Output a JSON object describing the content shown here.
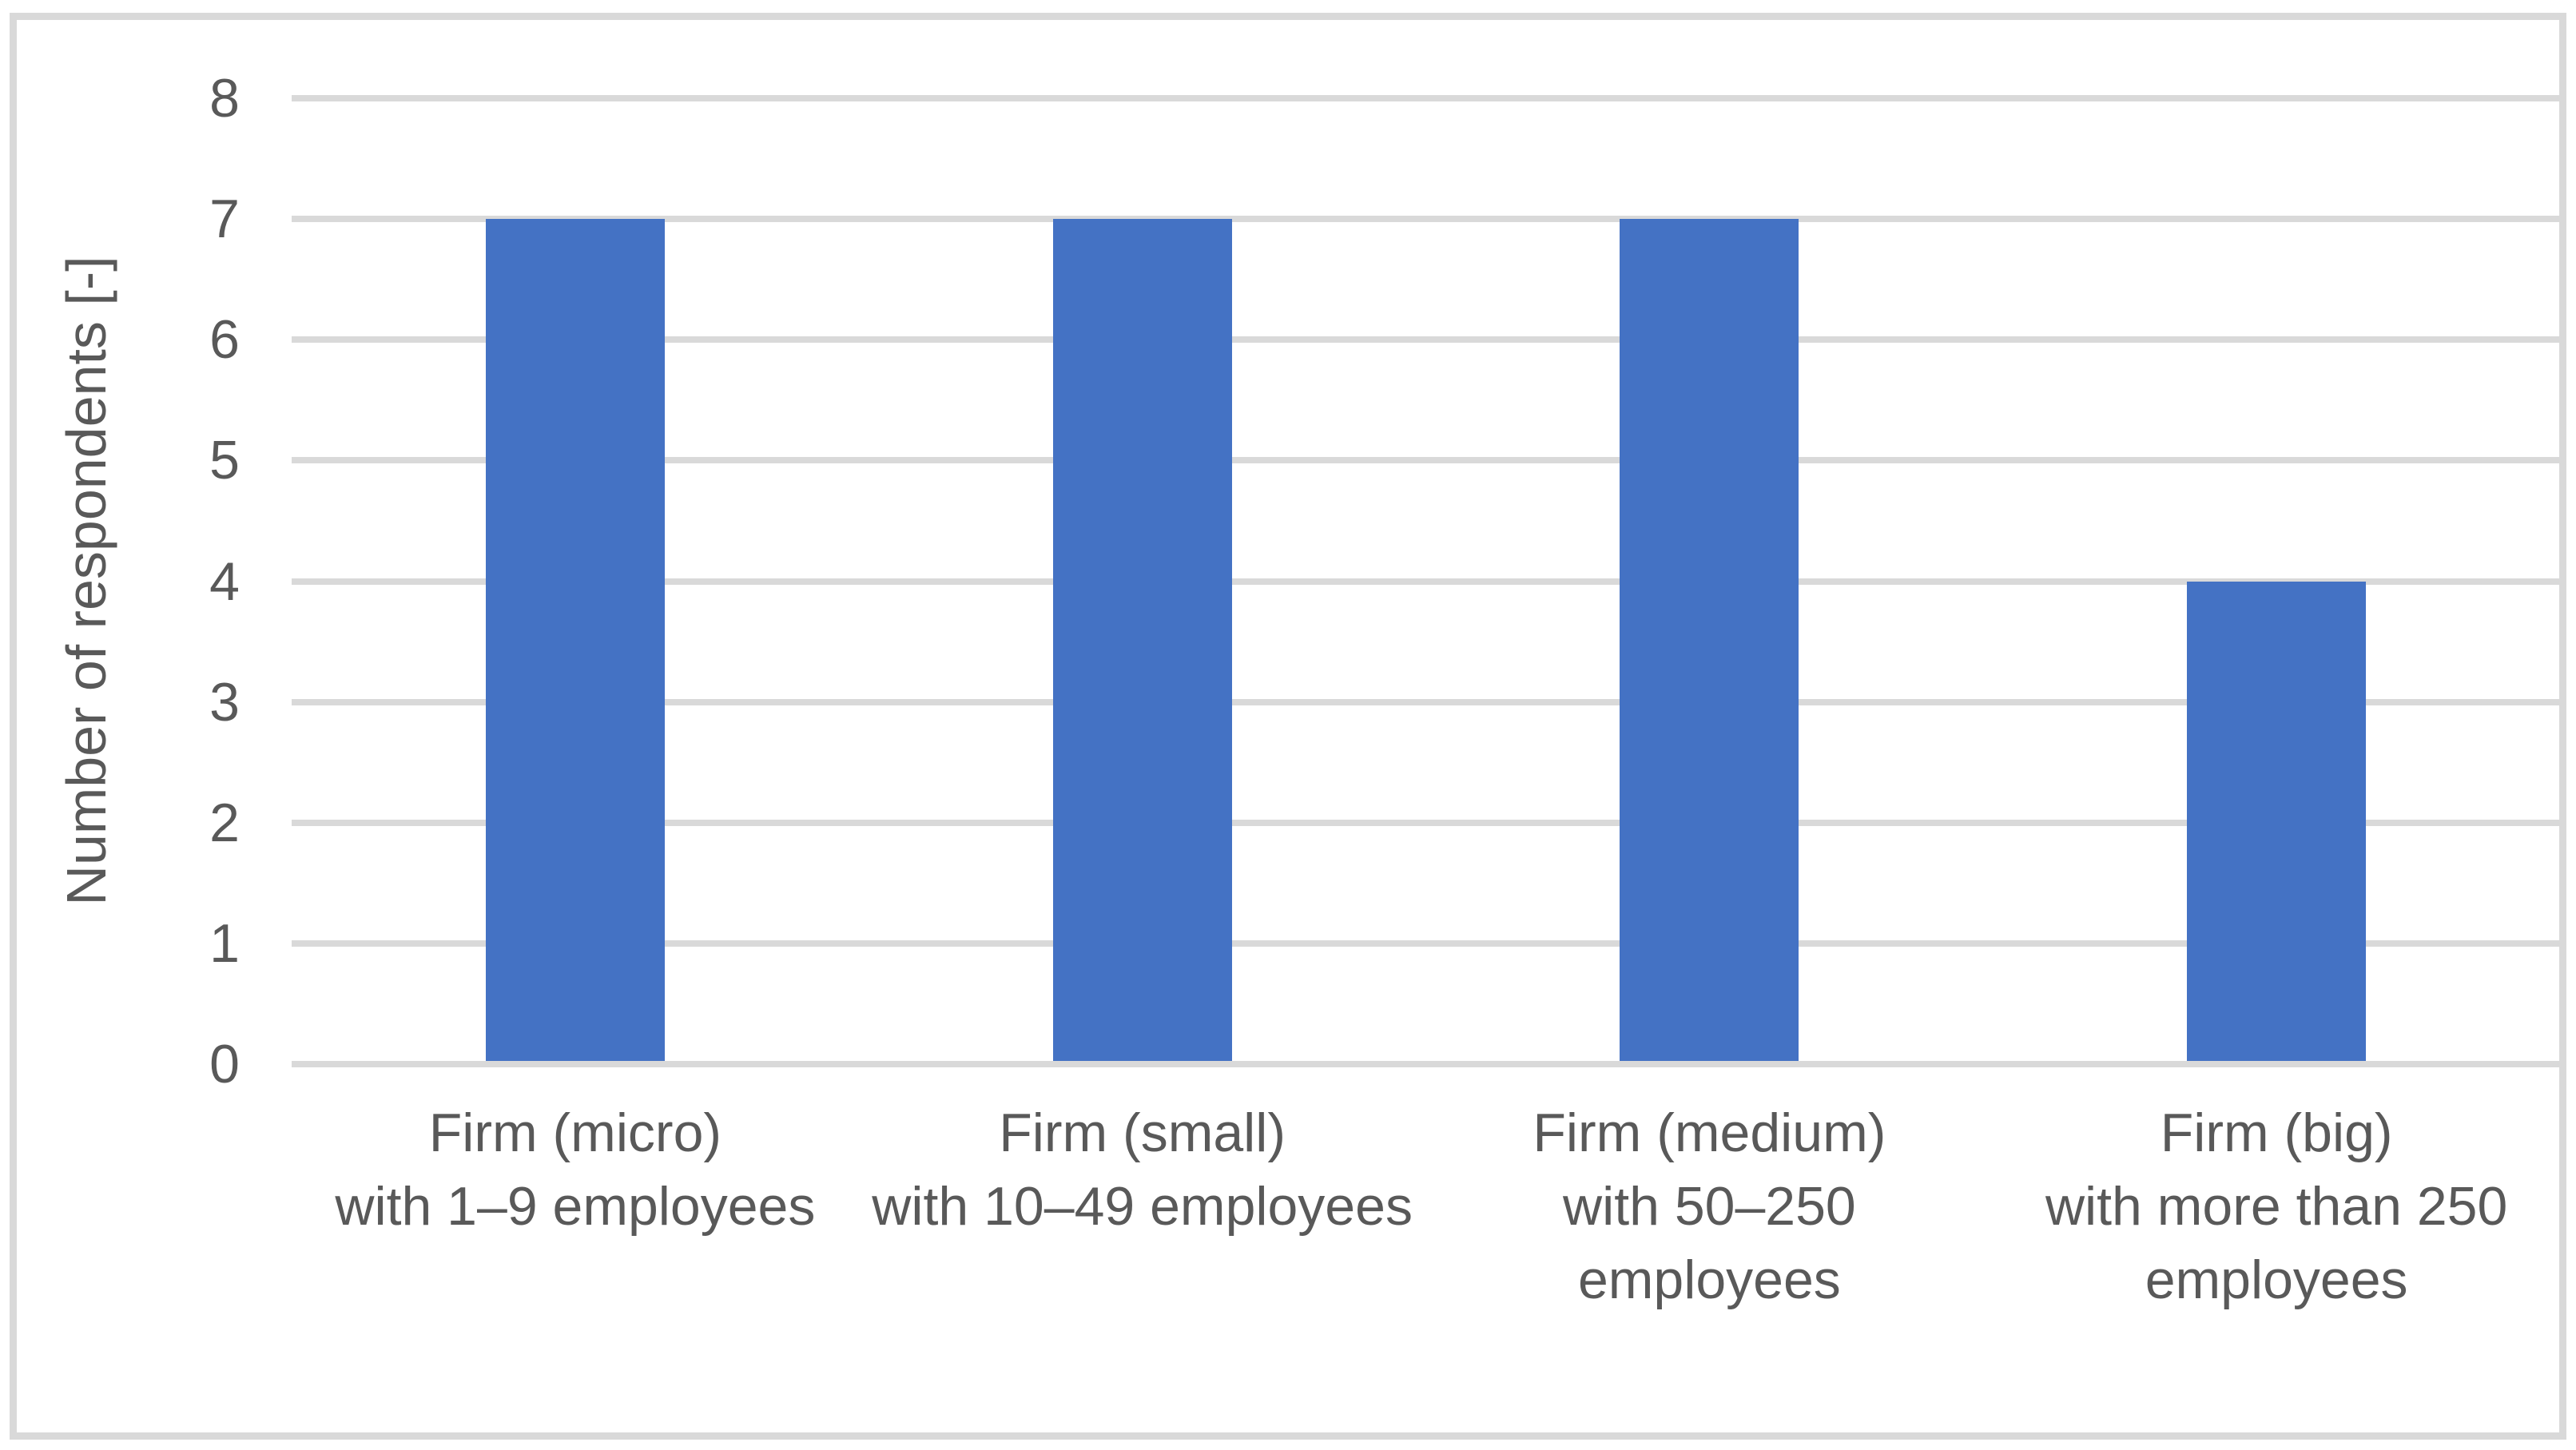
{
  "chart_data": {
    "type": "bar",
    "title": "",
    "xlabel": "",
    "ylabel": "Number of respondents [-]",
    "categories": [
      "Firm (micro) with 1–9 employees",
      "Firm (small) with 10–49 employees",
      "Firm (medium) with 50–250 employees",
      "Firm (big) with more than 250 employees"
    ],
    "category_display_lines": [
      [
        "Firm (micro)",
        "with 1–9 employees"
      ],
      [
        "Firm (small)",
        "with 10–49 employees"
      ],
      [
        "Firm (medium)",
        "with 50–250",
        "employees"
      ],
      [
        "Firm (big)",
        "with more than 250",
        "employees"
      ]
    ],
    "values": [
      7,
      7,
      7,
      4
    ],
    "series": [
      {
        "name": "Number of respondents",
        "values": [
          7,
          7,
          7,
          4
        ]
      }
    ],
    "yticks": [
      0,
      1,
      2,
      3,
      4,
      5,
      6,
      7,
      8
    ],
    "ylim": [
      0,
      8
    ],
    "grid": "horizontal",
    "legend": "none",
    "colors": {
      "bar": "#4472C4",
      "gridline": "#D9D9D9",
      "axis_text": "#595959",
      "frame_border": "#D9D9D9",
      "background": "#FFFFFF"
    }
  }
}
